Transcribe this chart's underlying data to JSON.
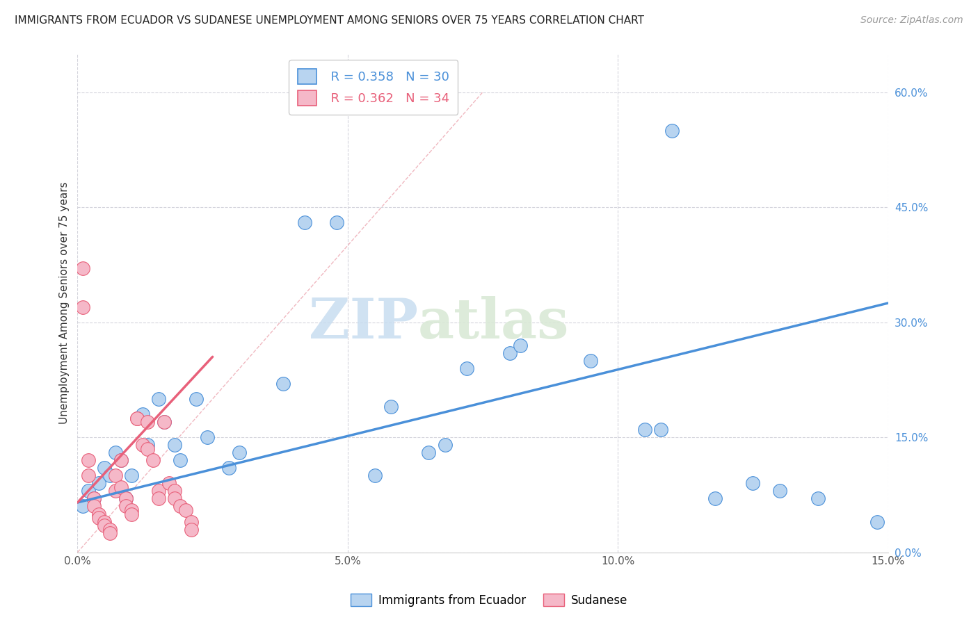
{
  "title": "IMMIGRANTS FROM ECUADOR VS SUDANESE UNEMPLOYMENT AMONG SENIORS OVER 75 YEARS CORRELATION CHART",
  "source": "Source: ZipAtlas.com",
  "ylabel_label": "Unemployment Among Seniors over 75 years",
  "ecuador_scatter": [
    [
      0.001,
      0.06
    ],
    [
      0.002,
      0.08
    ],
    [
      0.003,
      0.07
    ],
    [
      0.004,
      0.09
    ],
    [
      0.005,
      0.11
    ],
    [
      0.006,
      0.1
    ],
    [
      0.007,
      0.13
    ],
    [
      0.008,
      0.12
    ],
    [
      0.009,
      0.07
    ],
    [
      0.01,
      0.1
    ],
    [
      0.012,
      0.18
    ],
    [
      0.013,
      0.14
    ],
    [
      0.015,
      0.2
    ],
    [
      0.016,
      0.17
    ],
    [
      0.018,
      0.14
    ],
    [
      0.019,
      0.12
    ],
    [
      0.022,
      0.2
    ],
    [
      0.024,
      0.15
    ],
    [
      0.028,
      0.11
    ],
    [
      0.03,
      0.13
    ],
    [
      0.038,
      0.22
    ],
    [
      0.042,
      0.43
    ],
    [
      0.048,
      0.43
    ],
    [
      0.055,
      0.1
    ],
    [
      0.058,
      0.19
    ],
    [
      0.065,
      0.13
    ],
    [
      0.068,
      0.14
    ],
    [
      0.072,
      0.24
    ],
    [
      0.08,
      0.26
    ],
    [
      0.082,
      0.27
    ],
    [
      0.095,
      0.25
    ],
    [
      0.105,
      0.16
    ],
    [
      0.108,
      0.16
    ],
    [
      0.11,
      0.55
    ],
    [
      0.118,
      0.07
    ],
    [
      0.125,
      0.09
    ],
    [
      0.13,
      0.08
    ],
    [
      0.137,
      0.07
    ],
    [
      0.148,
      0.04
    ]
  ],
  "sudanese_scatter": [
    [
      0.001,
      0.37
    ],
    [
      0.001,
      0.32
    ],
    [
      0.002,
      0.12
    ],
    [
      0.002,
      0.1
    ],
    [
      0.003,
      0.07
    ],
    [
      0.003,
      0.06
    ],
    [
      0.004,
      0.05
    ],
    [
      0.004,
      0.045
    ],
    [
      0.005,
      0.04
    ],
    [
      0.005,
      0.035
    ],
    [
      0.006,
      0.03
    ],
    [
      0.006,
      0.025
    ],
    [
      0.007,
      0.08
    ],
    [
      0.007,
      0.1
    ],
    [
      0.008,
      0.12
    ],
    [
      0.008,
      0.085
    ],
    [
      0.009,
      0.07
    ],
    [
      0.009,
      0.06
    ],
    [
      0.01,
      0.055
    ],
    [
      0.01,
      0.05
    ],
    [
      0.011,
      0.175
    ],
    [
      0.011,
      0.175
    ],
    [
      0.012,
      0.14
    ],
    [
      0.013,
      0.135
    ],
    [
      0.013,
      0.17
    ],
    [
      0.014,
      0.12
    ],
    [
      0.015,
      0.08
    ],
    [
      0.015,
      0.07
    ],
    [
      0.016,
      0.17
    ],
    [
      0.017,
      0.09
    ],
    [
      0.018,
      0.08
    ],
    [
      0.018,
      0.07
    ],
    [
      0.019,
      0.06
    ],
    [
      0.02,
      0.055
    ],
    [
      0.021,
      0.04
    ],
    [
      0.021,
      0.03
    ]
  ],
  "ecuador_line_x": [
    0.0,
    0.15
  ],
  "ecuador_line_y": [
    0.065,
    0.325
  ],
  "sudanese_line_x": [
    0.0,
    0.025
  ],
  "sudanese_line_y": [
    0.065,
    0.255
  ],
  "diagonal_line_x": [
    0.0,
    0.075
  ],
  "diagonal_line_y": [
    0.0,
    0.6
  ],
  "ecuador_color": "#4a90d9",
  "ecuador_scatter_color": "#b8d4f0",
  "sudanese_color": "#e8607a",
  "sudanese_scatter_color": "#f5b8c8",
  "diagonal_color": "#f0b8c0",
  "background_color": "#ffffff",
  "grid_color": "#d4d4dc",
  "watermark_zip": "ZIP",
  "watermark_atlas": "atlas",
  "xlim": [
    0.0,
    0.15
  ],
  "ylim": [
    0.0,
    0.65
  ],
  "xstep": 0.05,
  "ystep": 0.15
}
